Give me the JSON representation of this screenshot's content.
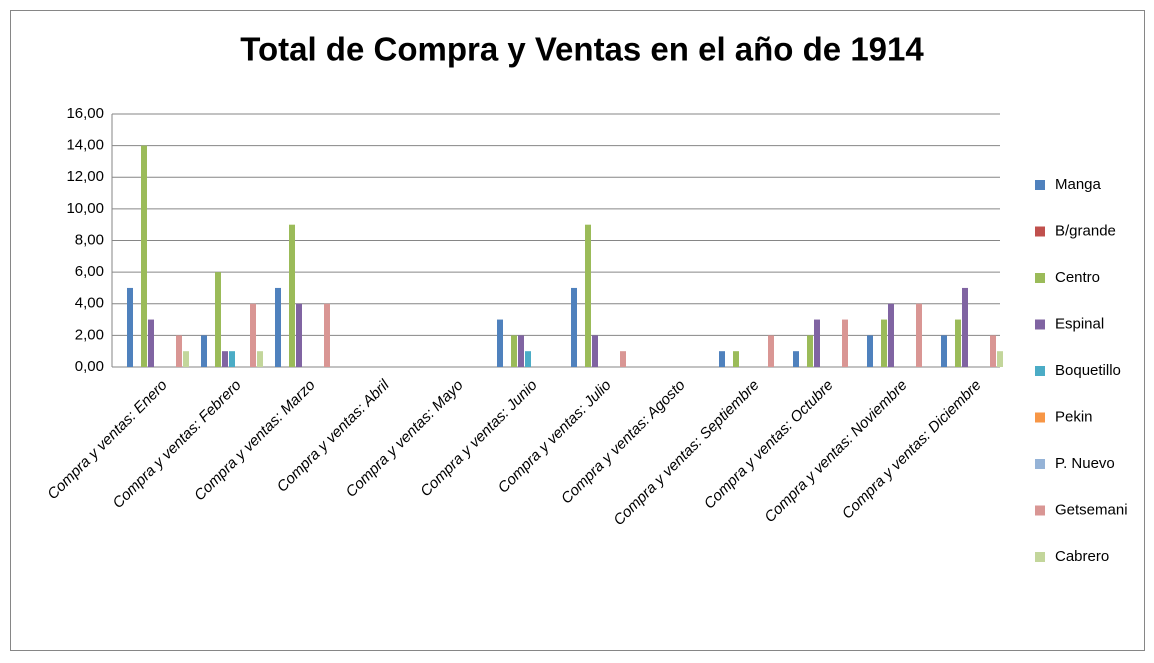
{
  "chart_data": {
    "type": "bar",
    "title": "Total de Compra y Ventas en el año de 1914",
    "categories": [
      "Compra y ventas: Enero",
      "Compra y ventas: Febrero",
      "Compra y ventas: Marzo",
      "Compra y ventas: Abril",
      "Compra y ventas: Mayo",
      "Compra y ventas: Junio",
      "Compra y ventas: Julio",
      "Compra y ventas: Agosto",
      "Compra y ventas: Septiembre",
      "Compra y ventas: Octubre",
      "Compra y ventas: Noviembre",
      "Compra y ventas: Diciembre"
    ],
    "series": [
      {
        "name": "Manga",
        "color": "#4f81bd",
        "values": [
          5,
          2,
          5,
          0,
          0,
          3,
          5,
          0,
          1,
          1,
          2,
          2
        ]
      },
      {
        "name": "B/grande",
        "color": "#c0504d",
        "values": [
          0,
          0,
          0,
          0,
          0,
          0,
          0,
          0,
          0,
          0,
          0,
          0
        ]
      },
      {
        "name": "Centro",
        "color": "#9bbb59",
        "values": [
          14,
          6,
          9,
          0,
          0,
          2,
          9,
          0,
          1,
          2,
          3,
          3
        ]
      },
      {
        "name": "Espinal",
        "color": "#8064a2",
        "values": [
          3,
          1,
          4,
          0,
          0,
          2,
          2,
          0,
          0,
          3,
          4,
          5
        ]
      },
      {
        "name": "Boquetillo",
        "color": "#4bacc6",
        "values": [
          0,
          1,
          0,
          0,
          0,
          1,
          0,
          0,
          0,
          0,
          0,
          0
        ]
      },
      {
        "name": "Pekin",
        "color": "#f79646",
        "values": [
          0,
          0,
          0,
          0,
          0,
          0,
          0,
          0,
          0,
          0,
          0,
          0
        ]
      },
      {
        "name": "P. Nuevo",
        "color": "#95b3d7",
        "values": [
          0,
          0,
          0,
          0,
          0,
          0,
          0,
          0,
          0,
          0,
          0,
          0
        ]
      },
      {
        "name": "Getsemani",
        "color": "#d99694",
        "values": [
          2,
          4,
          4,
          0,
          0,
          0,
          1,
          0,
          2,
          3,
          4,
          2
        ]
      },
      {
        "name": "Cabrero",
        "color": "#c3d69b",
        "values": [
          1,
          1,
          0,
          0,
          0,
          0,
          0,
          0,
          0,
          0,
          0,
          1
        ]
      }
    ],
    "ylim": [
      0,
      16
    ],
    "yticks": [
      {
        "value": 0,
        "label": "0,00"
      },
      {
        "value": 2,
        "label": "2,00"
      },
      {
        "value": 4,
        "label": "4,00"
      },
      {
        "value": 6,
        "label": "6,00"
      },
      {
        "value": 8,
        "label": "8,00"
      },
      {
        "value": 10,
        "label": "10,00"
      },
      {
        "value": 12,
        "label": "12,00"
      },
      {
        "value": 14,
        "label": "14,00"
      },
      {
        "value": 16,
        "label": "16,00"
      }
    ],
    "grid": true,
    "legend": "right"
  }
}
